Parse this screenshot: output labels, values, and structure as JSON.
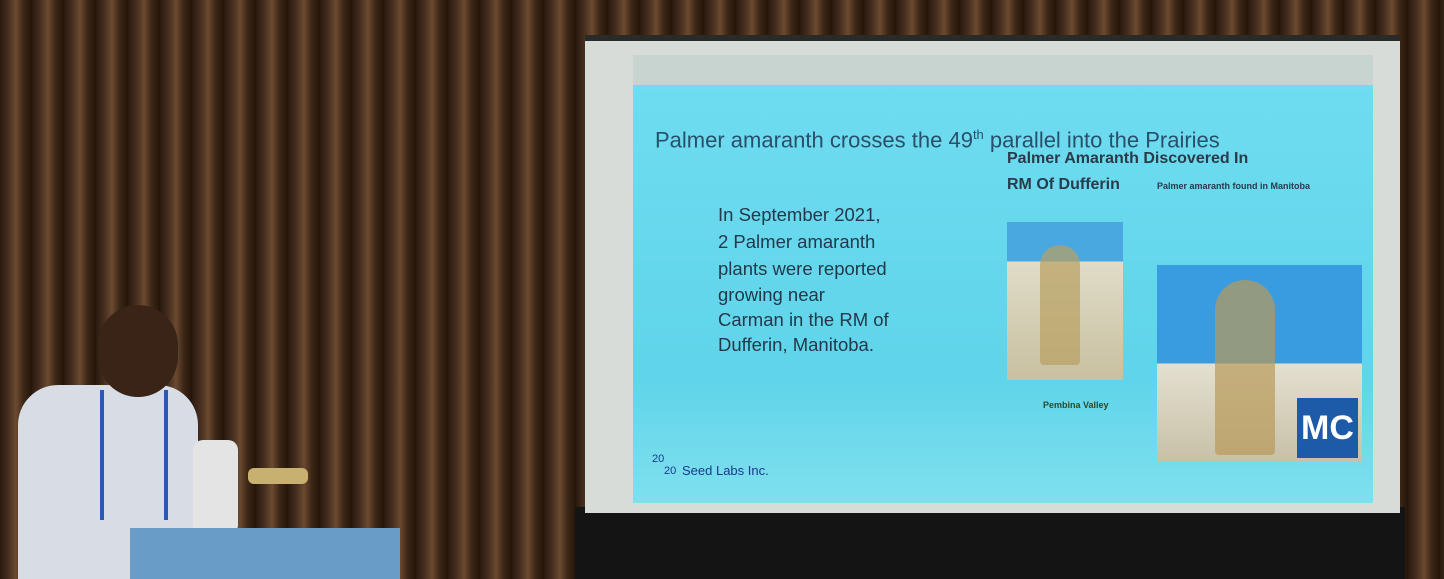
{
  "slide": {
    "title": {
      "before": "Palmer amaranth crosses the 49",
      "superscript": "th",
      "after": " parallel into the Prairies"
    },
    "body_lines": [
      "In September 2021,",
      "2 Palmer amaranth",
      "plants were reported",
      "growing near",
      "Carman in the RM of",
      "Dufferin, Manitoba."
    ],
    "article": {
      "headline_lines": [
        "Palmer Amaranth Discovered In",
        "RM Of Dufferin"
      ],
      "subhead": "Palmer amaranth found in Manitoba",
      "source_logo": "Pembina Valley",
      "badge": "MC"
    },
    "footer_logo": {
      "numerator": "20",
      "denominator": "20",
      "name": "Seed Labs Inc."
    }
  }
}
